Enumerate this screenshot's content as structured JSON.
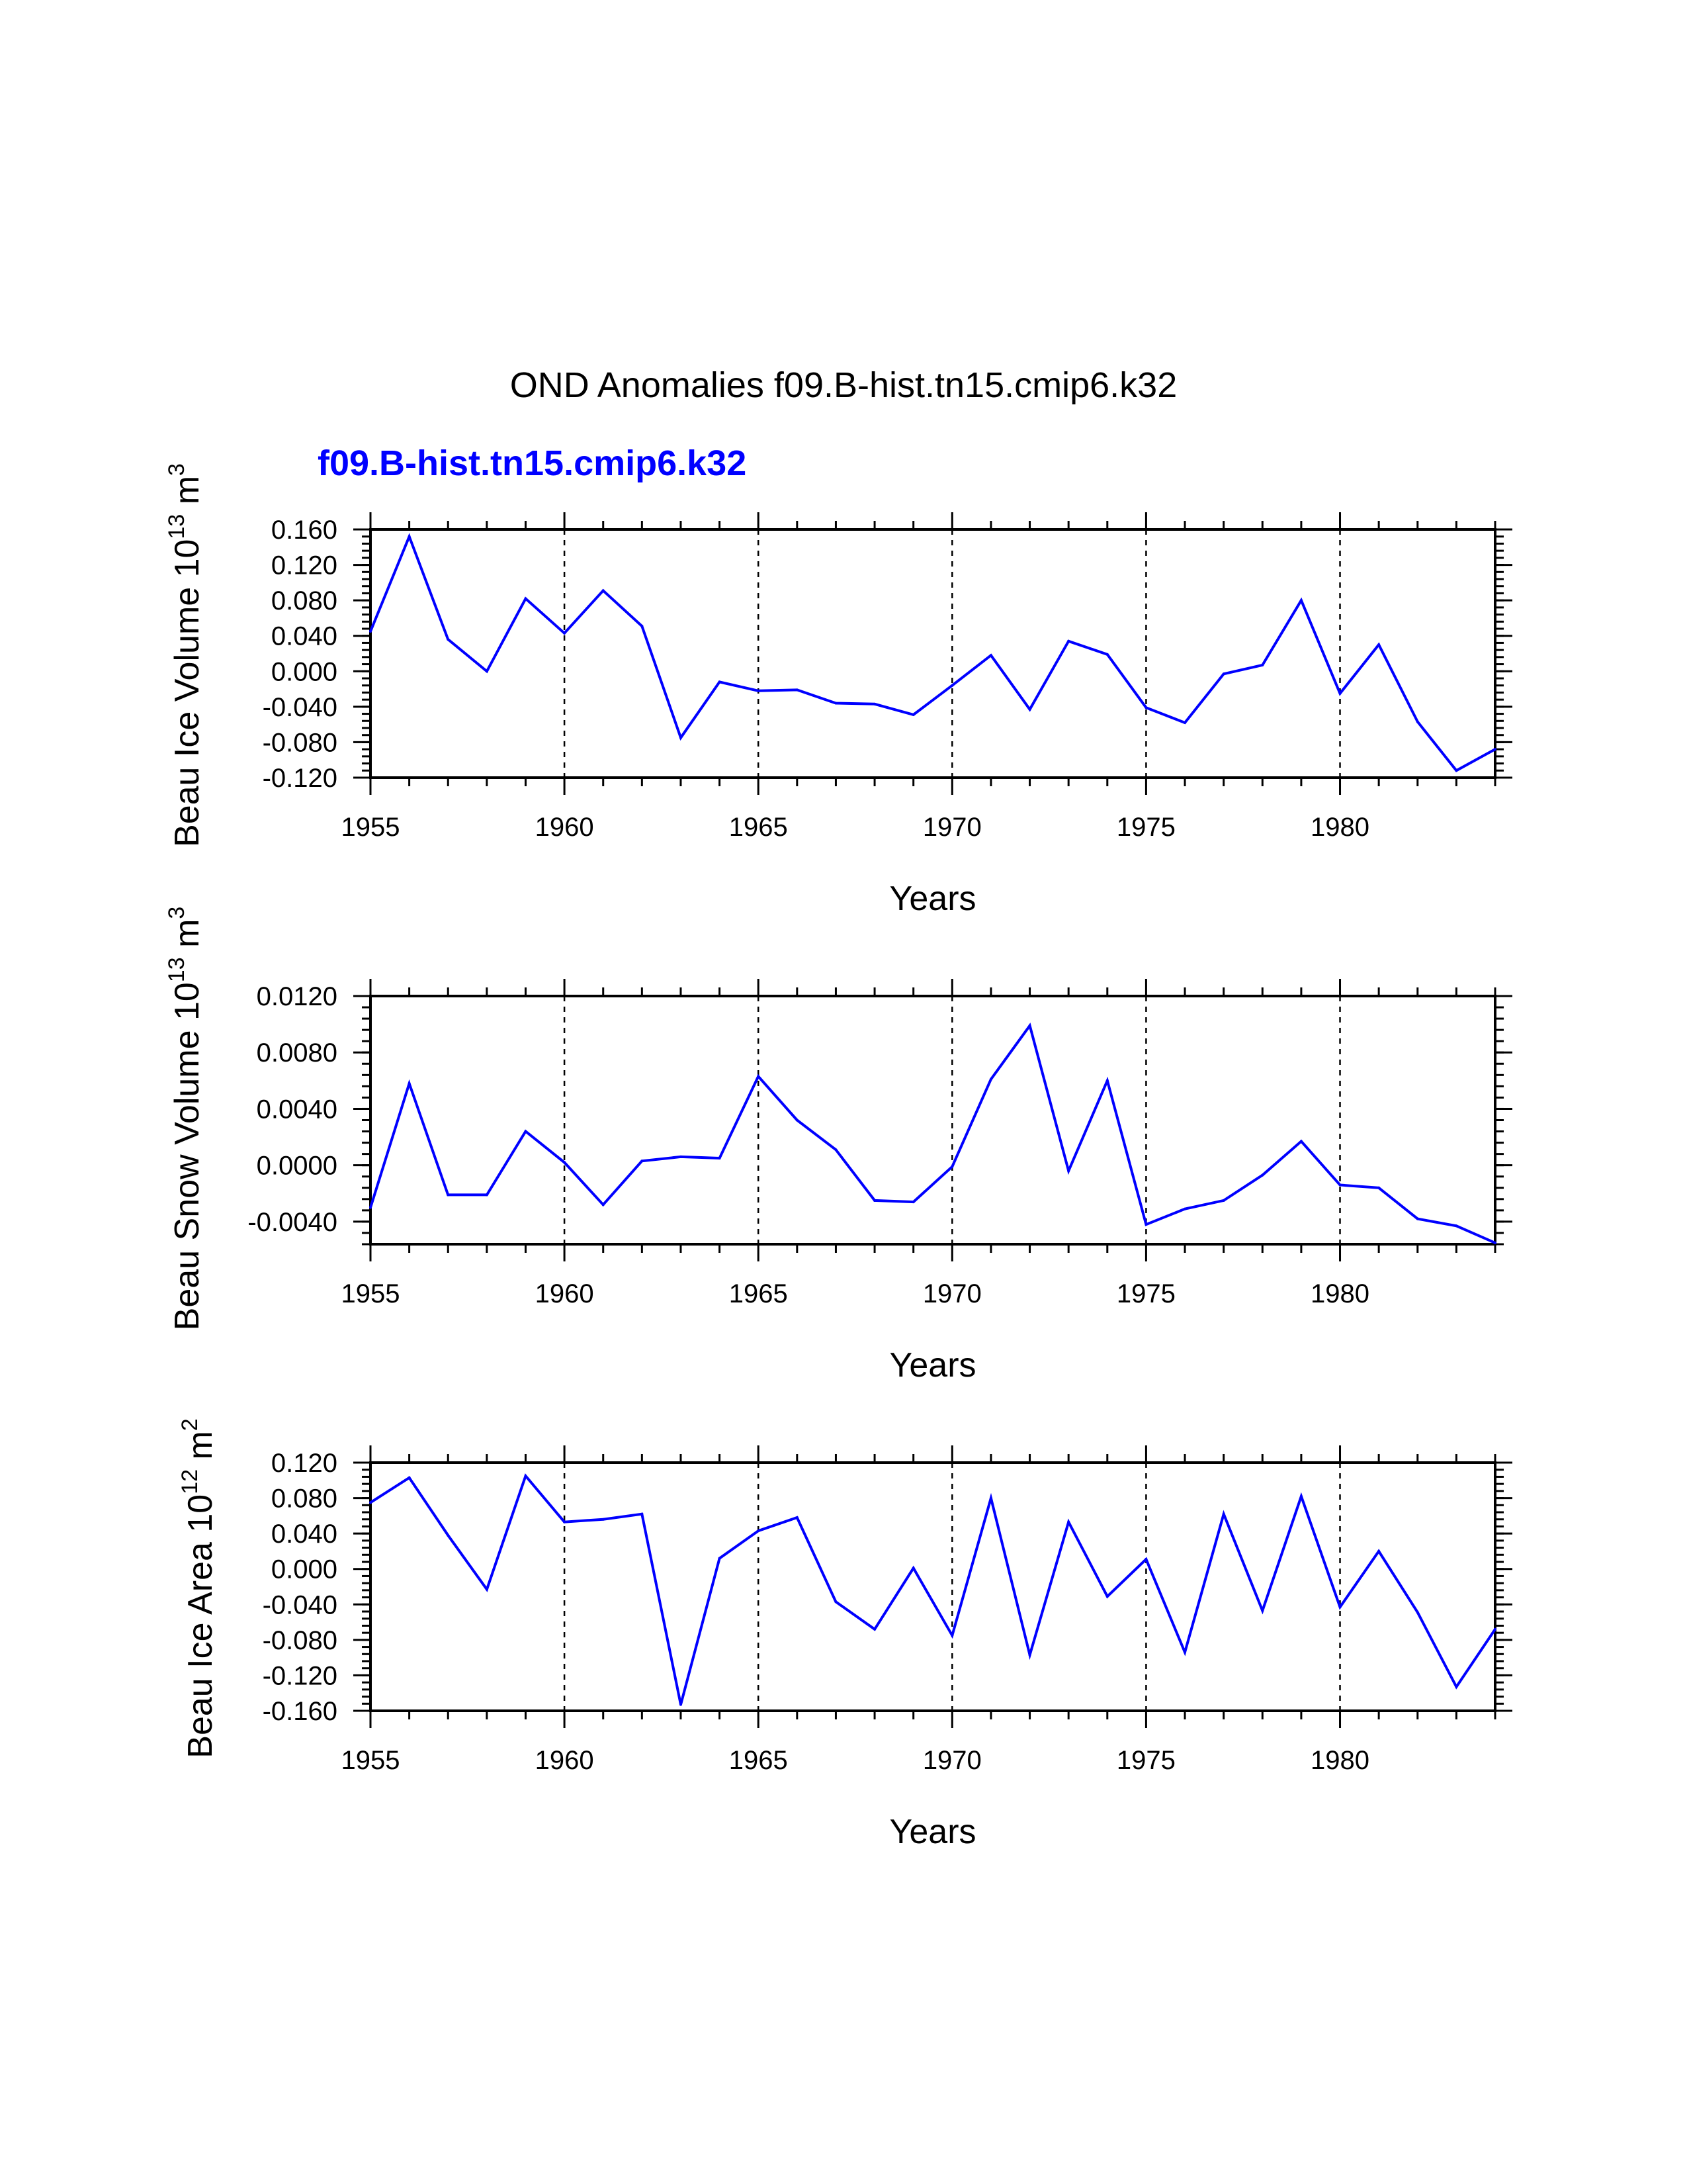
{
  "title": "OND Anomalies f09.B-hist.tn15.cmip6.k32",
  "subtitle": "f09.B-hist.tn15.cmip6.k32",
  "colors": {
    "series": "#0000ff",
    "axes": "#000000",
    "background": "#ffffff"
  },
  "chart_data": [
    {
      "type": "line",
      "ylabel_main": "Beau Ice Volume 10",
      "ylabel_exp": "13",
      "ylabel_unit": " m",
      "ylabel_unit_exp": "3",
      "xlabel": "Years",
      "xlim": [
        1955,
        1984
      ],
      "ylim": [
        -0.12,
        0.16
      ],
      "yticks": [
        0.16,
        0.12,
        0.08,
        0.04,
        0.0,
        -0.04,
        -0.08,
        -0.12
      ],
      "ytick_labels": [
        "0.160",
        "0.120",
        "0.080",
        "0.040",
        "0.000",
        "-0.040",
        "-0.080",
        "-0.120"
      ],
      "xticks": [
        1955,
        1960,
        1965,
        1970,
        1975,
        1980
      ],
      "xtick_labels": [
        "1955",
        "1960",
        "1965",
        "1970",
        "1975",
        "1980"
      ],
      "grid_x": [
        1960,
        1965,
        1970,
        1975,
        1980
      ],
      "series": [
        {
          "name": "f09.B-hist.tn15.cmip6.k32",
          "x": [
            1955,
            1956,
            1957,
            1958,
            1959,
            1960,
            1961,
            1962,
            1963,
            1964,
            1965,
            1966,
            1967,
            1968,
            1969,
            1970,
            1971,
            1972,
            1973,
            1974,
            1975,
            1976,
            1977,
            1978,
            1979,
            1980,
            1981,
            1982,
            1983,
            1984
          ],
          "values": [
            0.045,
            0.152,
            0.036,
            0.0,
            0.082,
            0.043,
            0.091,
            0.051,
            -0.075,
            -0.012,
            -0.022,
            -0.021,
            -0.036,
            -0.037,
            -0.049,
            -0.016,
            0.018,
            -0.043,
            0.034,
            0.019,
            -0.041,
            -0.058,
            -0.003,
            0.007,
            0.08,
            -0.025,
            0.03,
            -0.057,
            -0.112,
            -0.088
          ]
        }
      ]
    },
    {
      "type": "line",
      "ylabel_main": "Beau Snow Volume 10",
      "ylabel_exp": "13",
      "ylabel_unit": " m",
      "ylabel_unit_exp": "3",
      "xlabel": "Years",
      "xlim": [
        1955,
        1984
      ],
      "ylim": [
        -0.0056,
        0.012
      ],
      "yticks": [
        0.012,
        0.008,
        0.004,
        0.0,
        -0.004
      ],
      "ytick_labels": [
        "0.0120",
        "0.0080",
        "0.0040",
        "0.0000",
        "-0.0040"
      ],
      "xticks": [
        1955,
        1960,
        1965,
        1970,
        1975,
        1980
      ],
      "xtick_labels": [
        "1955",
        "1960",
        "1965",
        "1970",
        "1975",
        "1980"
      ],
      "grid_x": [
        1960,
        1965,
        1970,
        1975,
        1980
      ],
      "series": [
        {
          "name": "f09.B-hist.tn15.cmip6.k32",
          "x": [
            1955,
            1956,
            1957,
            1958,
            1959,
            1960,
            1961,
            1962,
            1963,
            1964,
            1965,
            1966,
            1967,
            1968,
            1969,
            1970,
            1971,
            1972,
            1973,
            1974,
            1975,
            1976,
            1977,
            1978,
            1979,
            1980,
            1981,
            1982,
            1983,
            1984
          ],
          "values": [
            -0.003,
            0.0058,
            -0.0021,
            -0.0021,
            0.0024,
            0.0002,
            -0.0028,
            0.0003,
            0.0006,
            0.0005,
            0.0063,
            0.0032,
            0.0011,
            -0.0025,
            -0.0026,
            -0.0001,
            0.0061,
            0.0099,
            -0.0004,
            0.006,
            -0.0042,
            -0.0031,
            -0.0025,
            -0.0007,
            0.0017,
            -0.0014,
            -0.0016,
            -0.0038,
            -0.0043,
            -0.0055
          ]
        }
      ]
    },
    {
      "type": "line",
      "ylabel_main": "Beau Ice Area 10",
      "ylabel_exp": "12",
      "ylabel_unit": " m",
      "ylabel_unit_exp": "2",
      "xlabel": "Years",
      "xlim": [
        1955,
        1984
      ],
      "ylim": [
        -0.16,
        0.12
      ],
      "yticks": [
        0.12,
        0.08,
        0.04,
        0.0,
        -0.04,
        -0.08,
        -0.12,
        -0.16
      ],
      "ytick_labels": [
        "0.120",
        "0.080",
        "0.040",
        "0.000",
        "-0.040",
        "-0.080",
        "-0.120",
        "-0.160"
      ],
      "xticks": [
        1955,
        1960,
        1965,
        1970,
        1975,
        1980
      ],
      "xtick_labels": [
        "1955",
        "1960",
        "1965",
        "1970",
        "1975",
        "1980"
      ],
      "grid_x": [
        1960,
        1965,
        1970,
        1975,
        1980
      ],
      "series": [
        {
          "name": "f09.B-hist.tn15.cmip6.k32",
          "x": [
            1955,
            1956,
            1957,
            1958,
            1959,
            1960,
            1961,
            1962,
            1963,
            1964,
            1965,
            1966,
            1967,
            1968,
            1969,
            1970,
            1971,
            1972,
            1973,
            1974,
            1975,
            1976,
            1977,
            1978,
            1979,
            1980,
            1981,
            1982,
            1983,
            1984
          ],
          "values": [
            0.075,
            0.103,
            0.038,
            -0.023,
            0.105,
            0.053,
            0.056,
            0.062,
            -0.153,
            0.012,
            0.043,
            0.058,
            -0.037,
            -0.068,
            0.001,
            -0.075,
            0.08,
            -0.097,
            0.053,
            -0.031,
            0.011,
            -0.094,
            0.062,
            -0.047,
            0.082,
            -0.043,
            0.02,
            -0.049,
            -0.133,
            -0.068
          ]
        }
      ]
    }
  ]
}
